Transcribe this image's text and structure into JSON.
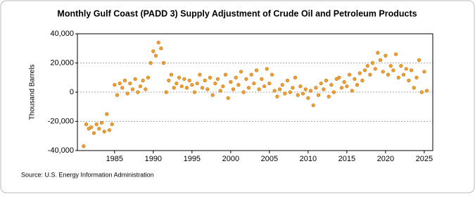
{
  "chart_data": {
    "type": "scatter",
    "title": "Monthly Gulf Coast (PADD 3) Supply Adjustment of Crude Oil and Petroleum Products",
    "y_label": "Thousand Barrels",
    "source": "Source: U.S. Energy Information Administration",
    "color": "#f0a030",
    "grid": true,
    "xlim": [
      1980.2,
      2026.1
    ],
    "xticks": [
      1985,
      1990,
      1995,
      2000,
      2005,
      2010,
      2015,
      2020,
      2025
    ],
    "ylim": [
      -40000,
      40000
    ],
    "yticks": [
      {
        "value": -40000,
        "label": "-40,000"
      },
      {
        "value": -20000,
        "label": "-20,000"
      },
      0,
      {
        "value": 20000,
        "label": "20,000"
      },
      {
        "value": 40000,
        "label": "40,000"
      }
    ],
    "x": [
      1981,
      1981.33,
      1981.67,
      1982,
      1982.33,
      1982.67,
      1983,
      1983.33,
      1983.67,
      1984,
      1984.33,
      1984.67,
      1985,
      1985.33,
      1985.67,
      1986,
      1986.33,
      1986.67,
      1987,
      1987.33,
      1987.67,
      1988,
      1988.33,
      1988.67,
      1989,
      1989.33,
      1989.67,
      1990,
      1990.33,
      1990.67,
      1991,
      1991.33,
      1991.67,
      1992,
      1992.33,
      1992.67,
      1993,
      1993.33,
      1993.67,
      1994,
      1994.33,
      1994.67,
      1995,
      1995.33,
      1995.67,
      1996,
      1996.33,
      1996.67,
      1997,
      1997.33,
      1997.67,
      1998,
      1998.33,
      1998.67,
      1999,
      1999.33,
      1999.67,
      2000,
      2000.33,
      2000.67,
      2001,
      2001.33,
      2001.67,
      2002,
      2002.33,
      2002.67,
      2003,
      2003.33,
      2003.67,
      2004,
      2004.33,
      2004.67,
      2005,
      2005.33,
      2005.67,
      2006,
      2006.33,
      2006.67,
      2007,
      2007.33,
      2007.67,
      2008,
      2008.33,
      2008.67,
      2009,
      2009.33,
      2009.67,
      2010,
      2010.33,
      2010.67,
      2011,
      2011.33,
      2011.67,
      2012,
      2012.33,
      2012.67,
      2013,
      2013.33,
      2013.67,
      2014,
      2014.33,
      2014.67,
      2015,
      2015.33,
      2015.67,
      2016,
      2016.33,
      2016.67,
      2017,
      2017.33,
      2017.67,
      2018,
      2018.33,
      2018.67,
      2019,
      2019.33,
      2019.67,
      2020,
      2020.33,
      2020.67,
      2021,
      2021.33,
      2021.67,
      2022,
      2022.33,
      2022.67,
      2023,
      2023.33,
      2023.67,
      2024,
      2024.33,
      2024.67,
      2025,
      2025.33
    ],
    "values": [
      -37000,
      -22000,
      -25000,
      -24000,
      -28000,
      -22000,
      -25000,
      -21000,
      -27000,
      -15000,
      -26000,
      -22000,
      5000,
      -2000,
      6000,
      3000,
      8000,
      -1000,
      6000,
      2000,
      9000,
      0,
      4000,
      8000,
      2000,
      10000,
      20000,
      28000,
      25000,
      34000,
      30000,
      20000,
      0,
      8000,
      12000,
      3000,
      6000,
      10000,
      4000,
      9000,
      3000,
      8000,
      5000,
      0,
      6000,
      12000,
      3000,
      8000,
      2000,
      10000,
      -2000,
      6000,
      9000,
      1000,
      4000,
      12000,
      -4000,
      7000,
      2000,
      10000,
      5000,
      14000,
      0,
      9000,
      3000,
      12000,
      6000,
      15000,
      2000,
      9000,
      4000,
      16000,
      6000,
      12000,
      1000,
      -3000,
      2000,
      5000,
      -1000,
      8000,
      0,
      3000,
      10000,
      -2000,
      4000,
      -1000,
      2000,
      -4000,
      1000,
      -9000,
      3000,
      -2000,
      6000,
      2000,
      8000,
      -3000,
      5000,
      0,
      9000,
      10000,
      3000,
      7000,
      4000,
      12000,
      1000,
      9000,
      5000,
      13000,
      8000,
      15000,
      18000,
      12000,
      20000,
      16000,
      27000,
      22000,
      14000,
      25000,
      12000,
      18000,
      15000,
      26000,
      10000,
      18000,
      12000,
      16000,
      8000,
      15000,
      3000,
      10000,
      22000,
      0,
      14000,
      1000
    ]
  }
}
